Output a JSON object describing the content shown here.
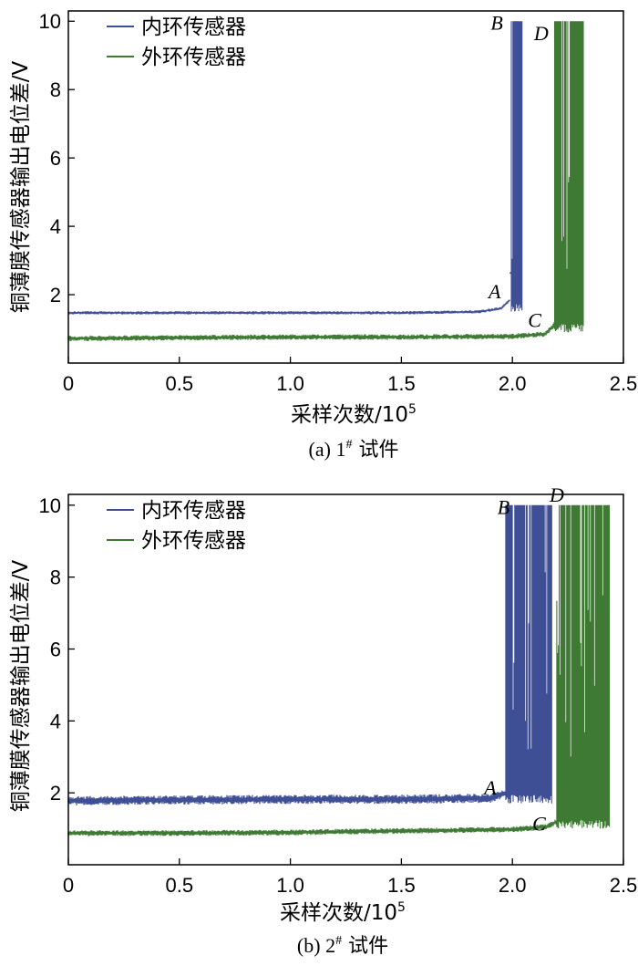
{
  "colors": {
    "inner": "#3f4f96",
    "outer": "#3f7a34"
  },
  "chart_data": [
    {
      "type": "line",
      "caption": {
        "label": "(a) 1",
        "sup": "#",
        "cn": " 试件"
      },
      "xlabel": {
        "text": "采样次数/10",
        "sup": "5"
      },
      "ylabel": "铜薄膜传感器输出电位差/V",
      "xlim": [
        0,
        2.5
      ],
      "ylim": [
        0,
        10.3
      ],
      "xticks": [
        0,
        0.5,
        1.0,
        1.5,
        2.0,
        2.5
      ],
      "xtick_labels": [
        "0",
        "0.5",
        "1.0",
        "1.5",
        "2.0",
        "2.5"
      ],
      "yticks": [
        2,
        4,
        6,
        8,
        10
      ],
      "ytick_labels": [
        "2",
        "4",
        "6",
        "8",
        "10"
      ],
      "legend": {
        "position": "top-left",
        "entries": [
          "内环传感器",
          "外环传感器"
        ]
      },
      "series": [
        {
          "name": "内环传感器",
          "color_key": "inner",
          "baseline": 1.47,
          "noise": 0.03,
          "x": [
            0,
            0.5,
            1.0,
            1.5,
            1.85,
            1.95,
            1.99,
            2.0
          ],
          "y": [
            1.47,
            1.47,
            1.47,
            1.47,
            1.5,
            1.6,
            1.85,
            10
          ],
          "burst": {
            "start": 1.995,
            "end": 2.045,
            "low": 1.5,
            "high": 10
          }
        },
        {
          "name": "外环传感器",
          "color_key": "outer",
          "baseline": 0.75,
          "noise": 0.05,
          "x": [
            0,
            0.5,
            1.0,
            1.5,
            2.0,
            2.15,
            2.2
          ],
          "y": [
            0.72,
            0.74,
            0.76,
            0.76,
            0.78,
            0.85,
            1.2
          ],
          "burst": {
            "start": 2.19,
            "end": 2.32,
            "low": 0.9,
            "high": 10
          }
        }
      ],
      "annotations": [
        {
          "text": "A",
          "x": 1.92,
          "y": 1.9
        },
        {
          "text": "B",
          "x": 1.93,
          "y": 9.75
        },
        {
          "text": "C",
          "x": 2.1,
          "y": 1.05
        },
        {
          "text": "D",
          "x": 2.13,
          "y": 9.45
        }
      ]
    },
    {
      "type": "line",
      "caption": {
        "label": "(b) 2",
        "sup": "#",
        "cn": " 试件"
      },
      "xlabel": {
        "text": "采样次数/10",
        "sup": "5"
      },
      "ylabel": "铜薄膜传感器输出电位差/V",
      "xlim": [
        0,
        2.5
      ],
      "ylim": [
        0,
        10.3
      ],
      "xticks": [
        0,
        0.5,
        1.0,
        1.5,
        2.0,
        2.5
      ],
      "xtick_labels": [
        "0",
        "0.5",
        "1.0",
        "1.5",
        "2.0",
        "2.5"
      ],
      "yticks": [
        2,
        4,
        6,
        8,
        10
      ],
      "ytick_labels": [
        "2",
        "4",
        "6",
        "8",
        "10"
      ],
      "legend": {
        "position": "top-left",
        "entries": [
          "内环传感器",
          "外环传感器"
        ]
      },
      "series": [
        {
          "name": "内环传感器",
          "color_key": "inner",
          "baseline": 1.8,
          "noise": 0.08,
          "x": [
            0,
            0.5,
            1.0,
            1.5,
            1.9,
            1.97,
            2.0
          ],
          "y": [
            1.78,
            1.8,
            1.82,
            1.82,
            1.85,
            2.0,
            2.6
          ],
          "burst": {
            "start": 1.97,
            "end": 2.18,
            "low": 1.7,
            "high": 10
          }
        },
        {
          "name": "外环传感器",
          "color_key": "outer",
          "baseline": 0.88,
          "noise": 0.05,
          "x": [
            0,
            0.5,
            1.0,
            1.5,
            2.0,
            2.15,
            2.2
          ],
          "y": [
            0.88,
            0.88,
            0.9,
            0.94,
            0.98,
            1.05,
            1.2
          ],
          "burst": {
            "start": 2.2,
            "end": 2.44,
            "low": 1.0,
            "high": 10
          }
        }
      ],
      "annotations": [
        {
          "text": "A",
          "x": 1.9,
          "y": 1.95
        },
        {
          "text": "B",
          "x": 1.96,
          "y": 9.75
        },
        {
          "text": "C",
          "x": 2.12,
          "y": 0.95
        },
        {
          "text": "D",
          "x": 2.2,
          "y": 10.1
        }
      ]
    }
  ]
}
